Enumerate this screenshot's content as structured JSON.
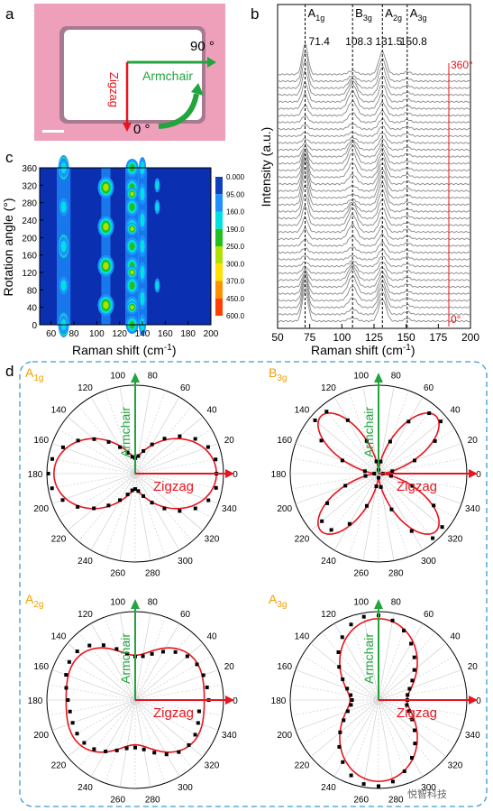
{
  "panel_labels": {
    "a": "a",
    "b": "b",
    "c": "c",
    "d": "d"
  },
  "panel_a": {
    "angle_90": "90 °",
    "angle_0": "0 °",
    "armchair": "Armchair",
    "zigzag": "Zigzag",
    "colors": {
      "substrate": "#ee9fb9",
      "flake": "#ffffff",
      "arrow_green": "#22a43f",
      "arrow_red": "#e8141e"
    }
  },
  "panel_b": {
    "ylabel": "Intensity (a.u.)",
    "xlabel": "Raman shift (cm",
    "xlabel_sup": "-1",
    "xlabel_end": ")",
    "marker_360": "360°",
    "marker_0": "0°",
    "peaks": [
      {
        "name": "A",
        "sub": "1g",
        "value": "71.4"
      },
      {
        "name": "B",
        "sub": "3g",
        "value": "108.3"
      },
      {
        "name": "A",
        "sub": "2g",
        "value": "131.5"
      },
      {
        "name": "A",
        "sub": "3g",
        "value": "150.8"
      }
    ]
  },
  "panel_c": {
    "ylabel": "Rotation angle (°)",
    "xlabel": "Raman shift (cm",
    "xlabel_sup": "-1",
    "xlabel_end": ")",
    "colorbar": [
      "0.000",
      "95.00",
      "160.0",
      "190.0",
      "250.0",
      "300.0",
      "370.0",
      "450.0",
      "600.0"
    ],
    "colorbar_colors": [
      "#1040c0",
      "#1e90ff",
      "#00e0e0",
      "#20c020",
      "#b0e000",
      "#ffe000",
      "#ff9000",
      "#ff4000",
      "#e00000"
    ]
  },
  "panel_d": {
    "armchair": "Armchair",
    "zigzag": "Zigzag",
    "subplots": [
      {
        "mode": "A",
        "sub": "1g"
      },
      {
        "mode": "B",
        "sub": "3g"
      },
      {
        "mode": "A",
        "sub": "2g"
      },
      {
        "mode": "A",
        "sub": "3g"
      }
    ],
    "colors": {
      "fit": "#e8141e",
      "marker": "#000000",
      "arrow_green": "#22a43f",
      "arrow_red": "#e8141e",
      "mode_label": "#f0a000"
    }
  },
  "watermark": "悦智科技",
  "chart_data": [
    {
      "type": "line",
      "title": "",
      "xlabel": "Raman shift (cm-1)",
      "ylabel": "Intensity (a.u.)",
      "xlim": [
        50,
        200
      ],
      "xticks": [
        50,
        75,
        100,
        125,
        150,
        175,
        200
      ],
      "series_note": "stacked spectra from 0° (bottom) to 360° (top)",
      "peak_positions": [
        71.4,
        108.3,
        131.5,
        150.8
      ],
      "peak_labels": [
        "A1g",
        "B3g",
        "A2g",
        "A3g"
      ]
    },
    {
      "type": "heatmap",
      "xlabel": "Raman shift (cm-1)",
      "ylabel": "Rotation angle (°)",
      "xlim": [
        50,
        200
      ],
      "ylim": [
        0,
        360
      ],
      "xticks": [
        60,
        80,
        100,
        120,
        140,
        160,
        180,
        200
      ],
      "yticks": [
        0,
        40,
        80,
        120,
        160,
        200,
        240,
        280,
        320,
        360
      ],
      "colorbar_levels": [
        0,
        95,
        160,
        190,
        250,
        300,
        370,
        450,
        600
      ]
    },
    {
      "type": "scatter",
      "subtype": "polar",
      "angle_ticks": [
        0,
        20,
        40,
        60,
        80,
        100,
        120,
        140,
        160,
        180,
        200,
        220,
        240,
        260,
        280,
        300,
        320,
        340
      ],
      "subplots": [
        "A1g",
        "B3g",
        "A2g",
        "A3g"
      ]
    }
  ]
}
